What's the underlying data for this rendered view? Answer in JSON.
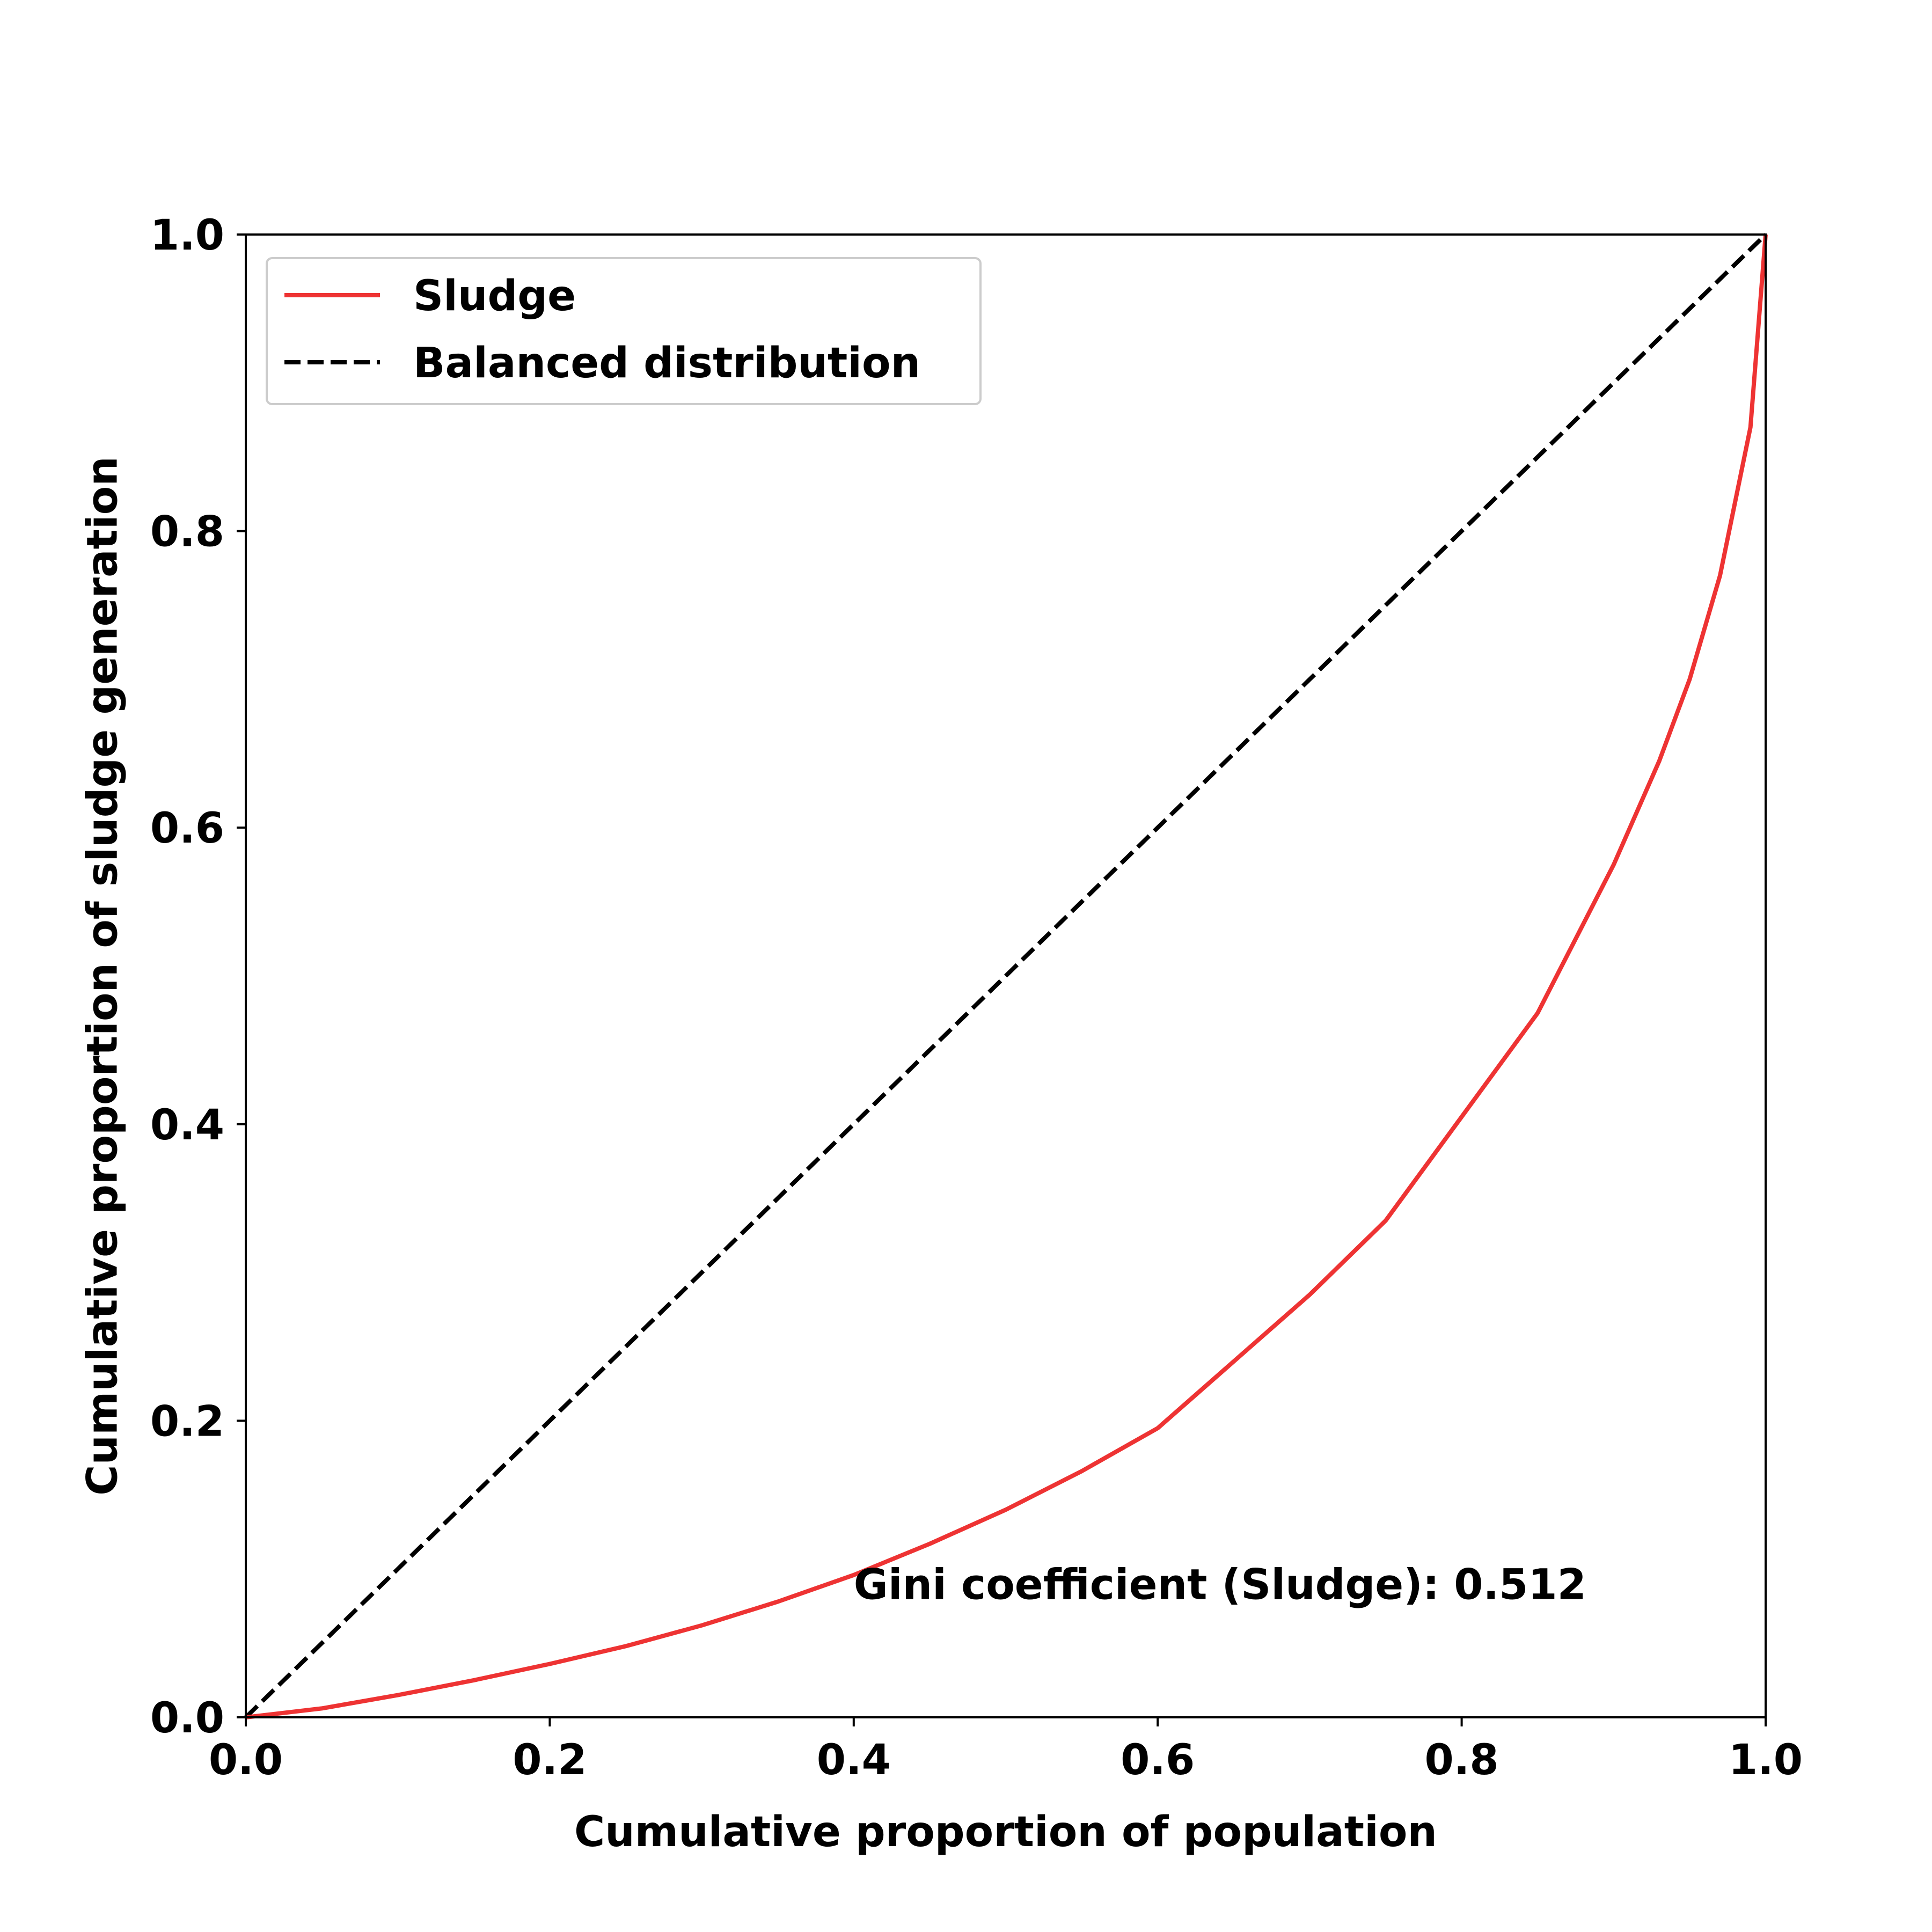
{
  "chart_data": {
    "type": "line",
    "title": "",
    "xlabel": "Cumulative proportion of population",
    "ylabel": "Cumulative proportion of sludge generation",
    "xlim": [
      0.0,
      1.0
    ],
    "ylim": [
      0.0,
      1.0
    ],
    "x_ticks": [
      "0.0",
      "0.2",
      "0.4",
      "0.6",
      "0.8",
      "1.0"
    ],
    "y_ticks": [
      "0.0",
      "0.2",
      "0.4",
      "0.6",
      "0.8",
      "1.0"
    ],
    "grid": false,
    "legend_position": "upper-left",
    "series": [
      {
        "name": "Sludge",
        "color": "#ee3333",
        "style": "solid",
        "x": [
          0.0,
          0.05,
          0.1,
          0.15,
          0.2,
          0.25,
          0.3,
          0.35,
          0.4,
          0.45,
          0.5,
          0.55,
          0.6,
          0.65,
          0.7,
          0.75,
          0.8,
          0.85,
          0.9,
          0.93,
          0.95,
          0.97,
          0.99,
          1.0
        ],
        "y": [
          0.0,
          0.006,
          0.015,
          0.025,
          0.036,
          0.048,
          0.062,
          0.078,
          0.096,
          0.117,
          0.14,
          0.166,
          0.195,
          0.24,
          0.285,
          0.335,
          0.405,
          0.475,
          0.575,
          0.645,
          0.7,
          0.77,
          0.87,
          1.0
        ]
      },
      {
        "name": "Balanced distribution",
        "color": "#000000",
        "style": "dashed",
        "x": [
          0.0,
          1.0
        ],
        "y": [
          0.0,
          1.0
        ]
      }
    ],
    "annotations": [
      {
        "text": "Gini coefficient (Sludge): 0.512",
        "x": 0.4,
        "y": 0.09
      }
    ]
  }
}
